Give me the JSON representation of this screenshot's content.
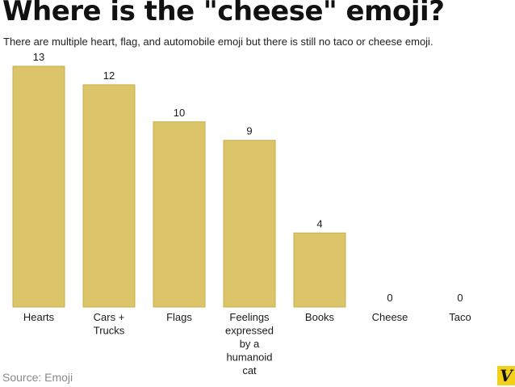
{
  "title": "Where is the \"cheese\" emoji?",
  "subtitle": "There are multiple heart, flag, and automobile emoji but there is still no taco or cheese emoji.",
  "source": "Source: Emoji",
  "logo": "V",
  "colors": {
    "bar": "#dcc468",
    "bar_stroke": "#c9af4e",
    "text": "#1a1a1a",
    "source": "#8a8a8a",
    "logo_bg": "#f3d11a"
  },
  "chart_data": {
    "type": "bar",
    "categories": [
      [
        "Hearts"
      ],
      [
        "Cars +",
        "Trucks"
      ],
      [
        "Flags"
      ],
      [
        "Feelings",
        "expressed",
        "by a",
        "humanoid",
        "cat"
      ],
      [
        "Books"
      ],
      [
        "Cheese"
      ],
      [
        "Taco"
      ]
    ],
    "values": [
      13,
      12,
      10,
      9,
      4,
      0,
      0
    ],
    "title": "Where is the \"cheese\" emoji?",
    "xlabel": "",
    "ylabel": "",
    "ylim": [
      0,
      13
    ],
    "grid": false,
    "data_labels": true
  }
}
